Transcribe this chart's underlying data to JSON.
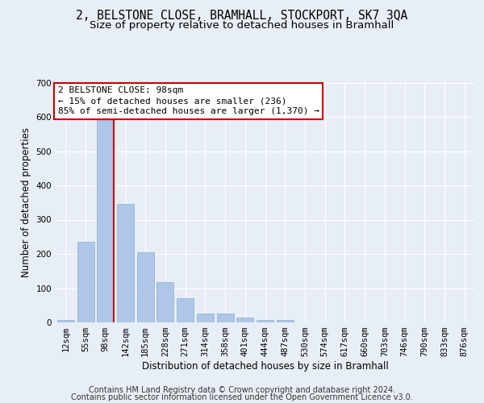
{
  "title": "2, BELSTONE CLOSE, BRAMHALL, STOCKPORT, SK7 3QA",
  "subtitle": "Size of property relative to detached houses in Bramhall",
  "xlabel": "Distribution of detached houses by size in Bramhall",
  "ylabel": "Number of detached properties",
  "footer_line1": "Contains HM Land Registry data © Crown copyright and database right 2024.",
  "footer_line2": "Contains public sector information licensed under the Open Government Licence v3.0.",
  "bar_color": "#aec6e8",
  "bar_edge_color": "#8badd4",
  "marker_line_color": "#cc0000",
  "annotation_text": "2 BELSTONE CLOSE: 98sqm\n← 15% of detached houses are smaller (236)\n85% of semi-detached houses are larger (1,370) →",
  "annotation_box_color": "#cc0000",
  "categories": [
    "12sqm",
    "55sqm",
    "98sqm",
    "142sqm",
    "185sqm",
    "228sqm",
    "271sqm",
    "314sqm",
    "358sqm",
    "401sqm",
    "444sqm",
    "487sqm",
    "530sqm",
    "574sqm",
    "617sqm",
    "660sqm",
    "703sqm",
    "746sqm",
    "790sqm",
    "833sqm",
    "876sqm"
  ],
  "values": [
    7,
    236,
    590,
    345,
    205,
    117,
    70,
    27,
    25,
    14,
    8,
    6,
    0,
    0,
    0,
    0,
    0,
    0,
    0,
    0,
    0
  ],
  "highlight_index": 2,
  "ylim": [
    0,
    700
  ],
  "yticks": [
    0,
    100,
    200,
    300,
    400,
    500,
    600,
    700
  ],
  "background_color": "#e8eef5",
  "grid_color": "#ffffff",
  "title_fontsize": 10.5,
  "subtitle_fontsize": 9.5,
  "axis_label_fontsize": 8.5,
  "tick_fontsize": 7.5,
  "annotation_fontsize": 8,
  "footer_fontsize": 7
}
